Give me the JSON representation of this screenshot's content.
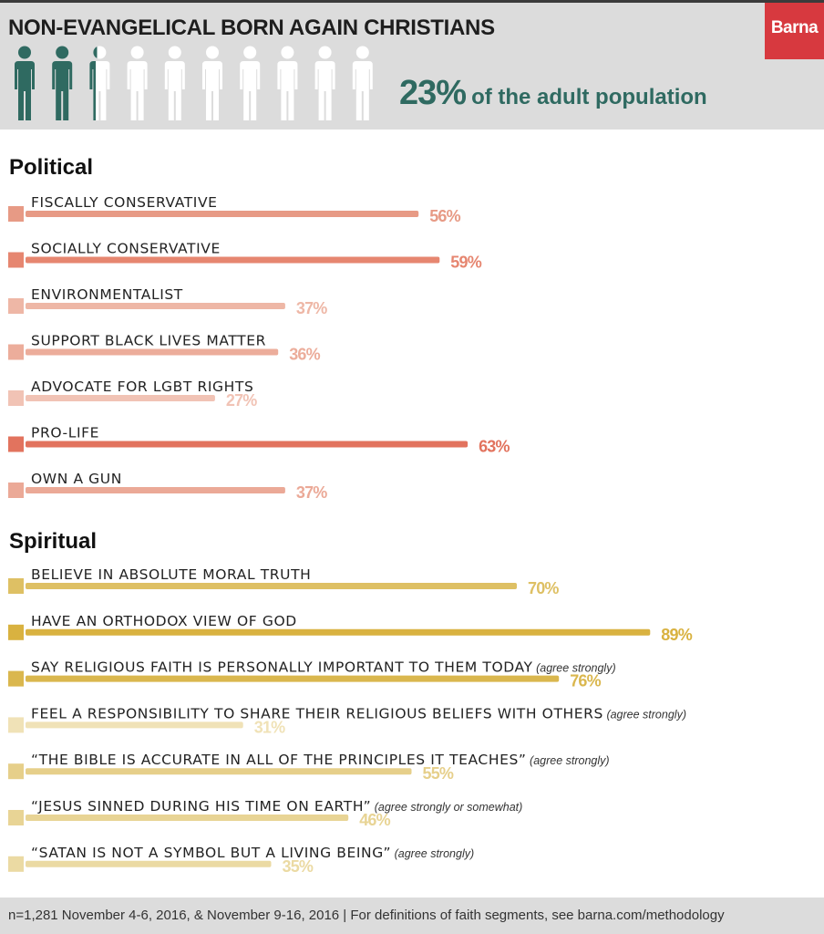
{
  "header": {
    "title": "NON-EVANGELICAL BORN AGAIN CHRISTIANS",
    "brand": "Barna",
    "stat_value": "23%",
    "stat_text": "of the adult population",
    "people_total": 10,
    "people_filled_fraction": 0.23,
    "colors": {
      "filled": "#2f6a61",
      "empty": "#ffffff",
      "brand": "#d7393f"
    }
  },
  "footer": {
    "note": "n=1,281 November 4-6, 2016, & November 9-16, 2016 | For definitions of faith segments, see barna.com/methodology"
  },
  "chart_data": [
    {
      "type": "bar",
      "title": "Political",
      "categories": [
        "FISCALLY CONSERVATIVE",
        "SOCIALLY CONSERVATIVE",
        "ENVIRONMENTALIST",
        "SUPPORT BLACK LIVES MATTER",
        "ADVOCATE FOR LGBT RIGHTS",
        "PRO-LIFE",
        "OWN A GUN"
      ],
      "qualifiers": [
        "",
        "",
        "",
        "",
        "",
        "",
        ""
      ],
      "values": [
        56,
        59,
        37,
        36,
        27,
        63,
        37
      ],
      "labels": [
        "56%",
        "59%",
        "37%",
        "36%",
        "27%",
        "63%",
        "37%"
      ],
      "colors": [
        "#e79a85",
        "#e68670",
        "#eeb7a6",
        "#ecad9b",
        "#f1c3b5",
        "#e2735e",
        "#eba997"
      ]
    },
    {
      "type": "bar",
      "title": "Spiritual",
      "categories": [
        "BELIEVE IN ABSOLUTE MORAL TRUTH",
        "HAVE AN ORTHODOX VIEW OF GOD",
        "SAY RELIGIOUS FAITH IS PERSONALLY IMPORTANT TO THEM TODAY",
        "FEEL A RESPONSIBILITY TO SHARE THEIR RELIGIOUS BELIEFS WITH OTHERS",
        "“THE BIBLE IS ACCURATE IN ALL OF THE PRINCIPLES IT TEACHES”",
        "“JESUS SINNED DURING HIS TIME ON EARTH”",
        "“SATAN IS NOT A SYMBOL BUT A LIVING BEING”"
      ],
      "qualifiers": [
        "",
        "",
        "(agree strongly)",
        "(agree strongly)",
        "(agree strongly)",
        "(agree strongly or somewhat)",
        "(agree strongly)"
      ],
      "values": [
        70,
        89,
        76,
        31,
        55,
        46,
        35
      ],
      "labels": [
        "70%",
        "89%",
        "76%",
        "31%",
        "55%",
        "46%",
        "35%"
      ],
      "colors": [
        "#dec064",
        "#d9b240",
        "#dab74e",
        "#f0e2b7",
        "#e6cf8a",
        "#e8d495",
        "#ebdaa3"
      ]
    }
  ]
}
